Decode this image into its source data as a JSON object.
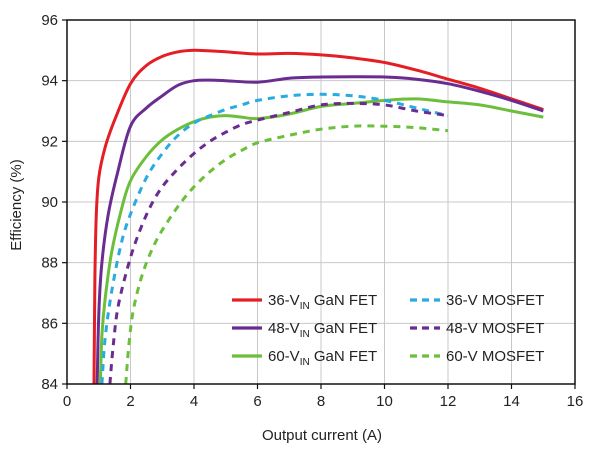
{
  "chart_data": {
    "type": "line",
    "title": "",
    "xlabel": "Output current (A)",
    "ylabel": "Efficiency (%)",
    "xlim": [
      0,
      16
    ],
    "ylim": [
      84,
      96
    ],
    "xticks": [
      0,
      2,
      4,
      6,
      8,
      10,
      12,
      14,
      16
    ],
    "yticks": [
      84,
      86,
      88,
      90,
      92,
      94,
      96
    ],
    "grid": true,
    "legend_position": "bottom-right",
    "series": [
      {
        "name": "36-V",
        "name_sub": "IN",
        "name_suffix": " GaN FET",
        "color": "#e31e24",
        "dash": "solid",
        "x": [
          0.85,
          0.88,
          0.92,
          1.0,
          1.2,
          1.5,
          2.0,
          2.5,
          3.0,
          3.5,
          4.0,
          4.5,
          5.0,
          6.0,
          7.0,
          8.0,
          9.0,
          10.0,
          11.0,
          12.0,
          13.0,
          14.0,
          15.0
        ],
        "y": [
          84.0,
          87.5,
          89.5,
          90.8,
          91.8,
          92.7,
          93.9,
          94.5,
          94.8,
          94.95,
          95.0,
          94.98,
          94.95,
          94.88,
          94.9,
          94.85,
          94.75,
          94.6,
          94.35,
          94.05,
          93.75,
          93.4,
          93.05
        ]
      },
      {
        "name": "48-V",
        "name_sub": "IN",
        "name_suffix": " GaN FET",
        "color": "#6a2c91",
        "dash": "solid",
        "x": [
          0.95,
          1.0,
          1.1,
          1.3,
          1.6,
          2.0,
          2.5,
          3.0,
          3.5,
          4.0,
          4.5,
          5.0,
          6.0,
          7.0,
          8.0,
          9.0,
          10.0,
          11.0,
          12.0,
          13.0,
          14.0,
          15.0
        ],
        "y": [
          84.0,
          86.3,
          88.0,
          89.6,
          91.0,
          92.5,
          93.1,
          93.5,
          93.85,
          94.0,
          94.02,
          94.0,
          93.95,
          94.08,
          94.12,
          94.13,
          94.12,
          94.05,
          93.9,
          93.65,
          93.35,
          93.0
        ]
      },
      {
        "name": "60-V",
        "name_sub": "IN",
        "name_suffix": " GaN FET",
        "color": "#6cbf3a",
        "dash": "solid",
        "x": [
          1.05,
          1.1,
          1.2,
          1.4,
          1.7,
          2.0,
          2.5,
          3.0,
          3.5,
          4.0,
          4.5,
          5.0,
          5.5,
          6.0,
          7.0,
          8.0,
          9.0,
          10.0,
          11.0,
          12.0,
          13.0,
          14.0,
          15.0
        ],
        "y": [
          84.0,
          85.6,
          86.8,
          88.3,
          89.7,
          90.7,
          91.5,
          92.05,
          92.4,
          92.65,
          92.8,
          92.85,
          92.8,
          92.75,
          92.9,
          93.15,
          93.25,
          93.35,
          93.4,
          93.3,
          93.2,
          93.0,
          92.8
        ]
      },
      {
        "name": "36-V MOSFET",
        "color": "#29abe2",
        "dash": "dashed",
        "x": [
          1.1,
          1.2,
          1.4,
          1.7,
          2.0,
          2.5,
          3.0,
          3.5,
          4.0,
          4.5,
          5.0,
          5.5,
          6.0,
          7.0,
          8.0,
          9.0,
          10.0,
          11.0,
          12.0
        ],
        "y": [
          84.0,
          85.5,
          87.0,
          88.6,
          89.6,
          90.8,
          91.6,
          92.2,
          92.6,
          92.85,
          93.05,
          93.2,
          93.35,
          93.5,
          93.55,
          93.5,
          93.35,
          93.1,
          92.85
        ]
      },
      {
        "name": "48-V MOSFET",
        "color": "#6a2c91",
        "dash": "dashed",
        "x": [
          1.35,
          1.45,
          1.6,
          1.9,
          2.2,
          2.6,
          3.0,
          3.5,
          4.0,
          4.5,
          5.0,
          5.5,
          6.0,
          7.0,
          8.0,
          9.0,
          10.0,
          11.0,
          12.0
        ],
        "y": [
          84.0,
          85.2,
          86.5,
          87.8,
          88.8,
          89.8,
          90.5,
          91.1,
          91.6,
          92.0,
          92.3,
          92.55,
          92.7,
          92.95,
          93.2,
          93.25,
          93.2,
          93.0,
          92.85
        ]
      },
      {
        "name": "60-V MOSFET",
        "color": "#6cbf3a",
        "dash": "dashed",
        "x": [
          1.85,
          1.95,
          2.1,
          2.4,
          2.8,
          3.2,
          3.6,
          4.0,
          4.5,
          5.0,
          5.5,
          6.0,
          7.0,
          8.0,
          9.0,
          10.0,
          11.0,
          12.0
        ],
        "y": [
          84.0,
          85.3,
          86.5,
          87.7,
          88.7,
          89.4,
          90.0,
          90.5,
          91.0,
          91.4,
          91.7,
          91.95,
          92.2,
          92.4,
          92.5,
          92.5,
          92.45,
          92.35
        ]
      }
    ]
  }
}
